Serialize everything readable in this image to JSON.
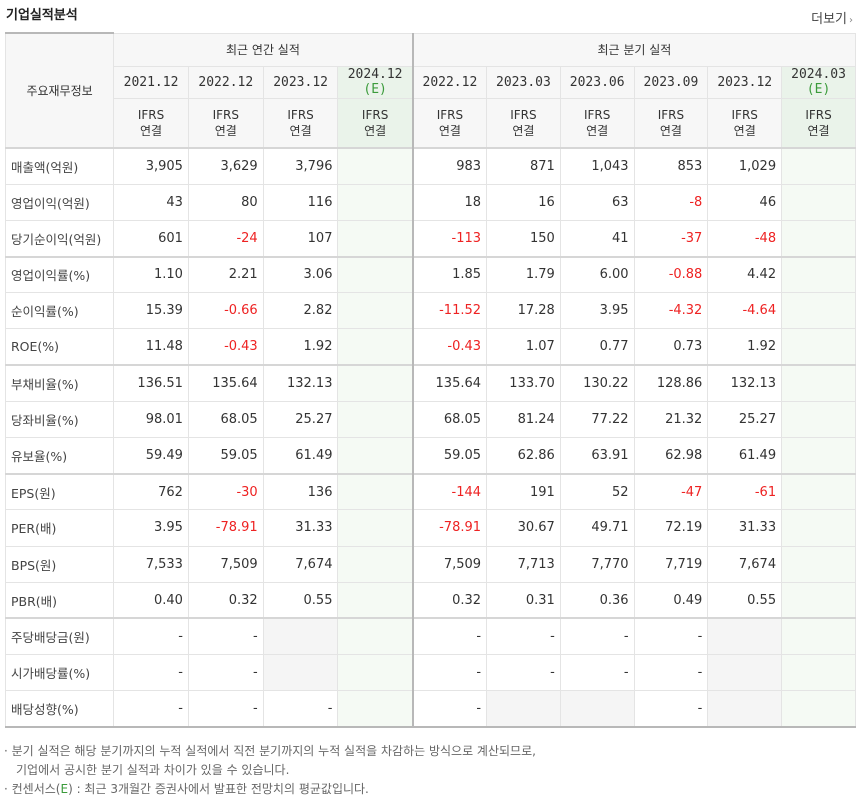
{
  "header": {
    "title": "기업실적분석",
    "more_label": "더보기"
  },
  "table": {
    "row_header_label": "주요재무정보",
    "groups": {
      "annual": "최근 연간 실적",
      "quarterly": "최근 분기 실적"
    },
    "periods": [
      {
        "label": "2021.12",
        "e": ""
      },
      {
        "label": "2022.12",
        "e": ""
      },
      {
        "label": "2023.12",
        "e": ""
      },
      {
        "label": "2024.12",
        "e": "(E)"
      },
      {
        "label": "2022.12",
        "e": ""
      },
      {
        "label": "2023.03",
        "e": ""
      },
      {
        "label": "2023.06",
        "e": ""
      },
      {
        "label": "2023.09",
        "e": ""
      },
      {
        "label": "2023.12",
        "e": ""
      },
      {
        "label": "2024.03",
        "e": "(E)"
      }
    ],
    "ifrs_top": "IFRS",
    "ifrs_bottom": "연결",
    "rows": [
      {
        "label": "매출액(억원)",
        "values": [
          "3,905",
          "3,629",
          "3,796",
          "",
          "983",
          "871",
          "1,043",
          "853",
          "1,029",
          ""
        ]
      },
      {
        "label": "영업이익(억원)",
        "values": [
          "43",
          "80",
          "116",
          "",
          "18",
          "16",
          "63",
          "-8",
          "46",
          ""
        ]
      },
      {
        "label": "당기순이익(억원)",
        "values": [
          "601",
          "-24",
          "107",
          "",
          "-113",
          "150",
          "41",
          "-37",
          "-48",
          ""
        ]
      },
      {
        "label": "영업이익률(%)",
        "values": [
          "1.10",
          "2.21",
          "3.06",
          "",
          "1.85",
          "1.79",
          "6.00",
          "-0.88",
          "4.42",
          ""
        ]
      },
      {
        "label": "순이익률(%)",
        "values": [
          "15.39",
          "-0.66",
          "2.82",
          "",
          "-11.52",
          "17.28",
          "3.95",
          "-4.32",
          "-4.64",
          ""
        ]
      },
      {
        "label": "ROE(%)",
        "values": [
          "11.48",
          "-0.43",
          "1.92",
          "",
          "-0.43",
          "1.07",
          "0.77",
          "0.73",
          "1.92",
          ""
        ]
      },
      {
        "label": "부채비율(%)",
        "values": [
          "136.51",
          "135.64",
          "132.13",
          "",
          "135.64",
          "133.70",
          "130.22",
          "128.86",
          "132.13",
          ""
        ]
      },
      {
        "label": "당좌비율(%)",
        "values": [
          "98.01",
          "68.05",
          "25.27",
          "",
          "68.05",
          "81.24",
          "77.22",
          "21.32",
          "25.27",
          ""
        ]
      },
      {
        "label": "유보율(%)",
        "values": [
          "59.49",
          "59.05",
          "61.49",
          "",
          "59.05",
          "62.86",
          "63.91",
          "62.98",
          "61.49",
          ""
        ]
      },
      {
        "label": "EPS(원)",
        "values": [
          "762",
          "-30",
          "136",
          "",
          "-144",
          "191",
          "52",
          "-47",
          "-61",
          ""
        ]
      },
      {
        "label": "PER(배)",
        "values": [
          "3.95",
          "-78.91",
          "31.33",
          "",
          "-78.91",
          "30.67",
          "49.71",
          "72.19",
          "31.33",
          ""
        ]
      },
      {
        "label": "BPS(원)",
        "values": [
          "7,533",
          "7,509",
          "7,674",
          "",
          "7,509",
          "7,713",
          "7,770",
          "7,719",
          "7,674",
          ""
        ]
      },
      {
        "label": "PBR(배)",
        "values": [
          "0.40",
          "0.32",
          "0.55",
          "",
          "0.32",
          "0.31",
          "0.36",
          "0.49",
          "0.55",
          ""
        ]
      },
      {
        "label": "주당배당금(원)",
        "values": [
          "-",
          "-",
          "",
          "",
          "-",
          "-",
          "-",
          "-",
          "",
          ""
        ]
      },
      {
        "label": "시가배당률(%)",
        "values": [
          "-",
          "-",
          "",
          "",
          "-",
          "-",
          "-",
          "-",
          "",
          ""
        ]
      },
      {
        "label": "배당성향(%)",
        "values": [
          "-",
          "-",
          "-",
          "",
          "-",
          "",
          "",
          "-",
          "",
          ""
        ]
      }
    ]
  },
  "notes": {
    "line1": "분기 실적은 해당 분기까지의 누적 실적에서 직전 분기까지의 누적 실적을 차감하는 방식으로 계산되므로,",
    "line2": "기업에서 공시한 분기 실적과 차이가 있을 수 있습니다.",
    "line3_pre": "컨센서스(",
    "line3_e": "E",
    "line3_post": ") : 최근 3개월간 증권사에서 발표한 전망치의 평균값입니다."
  },
  "colors": {
    "negative": "#ee2222",
    "ifrs": "#ee7e1e",
    "estimate_bg": "#f5faf4",
    "estimate_mark": "#3b9b3b"
  }
}
